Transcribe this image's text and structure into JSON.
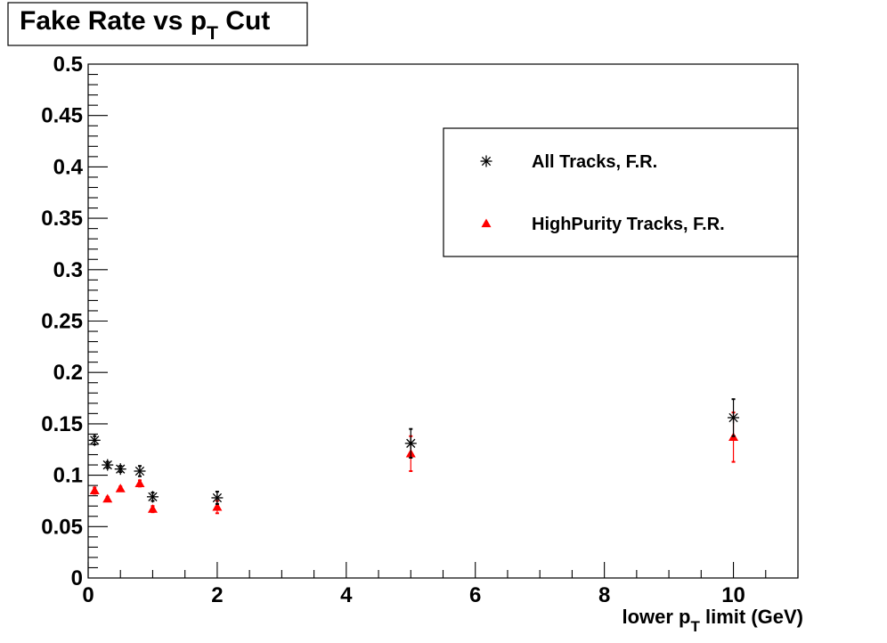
{
  "chart_data": {
    "type": "scatter",
    "title": {
      "main": "Fake Rate vs p",
      "sub": "T",
      "suffix": " Cut"
    },
    "xlabel": {
      "main": "lower p",
      "sub": "T",
      "suffix": " limit (GeV)"
    },
    "ylabel": "",
    "xlim": [
      0,
      11
    ],
    "ylim": [
      0,
      0.5
    ],
    "x_major_ticks": [
      0,
      2,
      4,
      6,
      8,
      10
    ],
    "x_tick_labels": [
      "0",
      "2",
      "4",
      "6",
      "8",
      "10"
    ],
    "y_major_ticks": [
      0,
      0.05,
      0.1,
      0.15,
      0.2,
      0.25,
      0.3,
      0.35,
      0.4,
      0.45,
      0.5
    ],
    "y_tick_labels": [
      "0",
      "0.05",
      "0.1",
      "0.15",
      "0.2",
      "0.25",
      "0.3",
      "0.35",
      "0.4",
      "0.45",
      "0.5"
    ],
    "grid": false,
    "legend_position": "top-right",
    "series": [
      {
        "name": "All Tracks, F.R.",
        "marker": "star",
        "color": "#000000",
        "x": [
          0.1,
          0.3,
          0.5,
          0.8,
          1.0,
          2.0,
          5.0,
          10.0
        ],
        "y": [
          0.134,
          0.11,
          0.106,
          0.104,
          0.079,
          0.078,
          0.131,
          0.156
        ],
        "yerr": [
          0.004,
          0.003,
          0.003,
          0.005,
          0.004,
          0.006,
          0.014,
          0.018
        ]
      },
      {
        "name": "HighPurity Tracks, F.R.",
        "marker": "triangle",
        "color": "#ff0000",
        "x": [
          0.1,
          0.3,
          0.5,
          0.8,
          1.0,
          2.0,
          5.0,
          10.0
        ],
        "y": [
          0.085,
          0.077,
          0.087,
          0.092,
          0.067,
          0.069,
          0.121,
          0.137
        ],
        "yerr": [
          0.003,
          0.002,
          0.002,
          0.003,
          0.003,
          0.006,
          0.017,
          0.024
        ]
      }
    ]
  }
}
